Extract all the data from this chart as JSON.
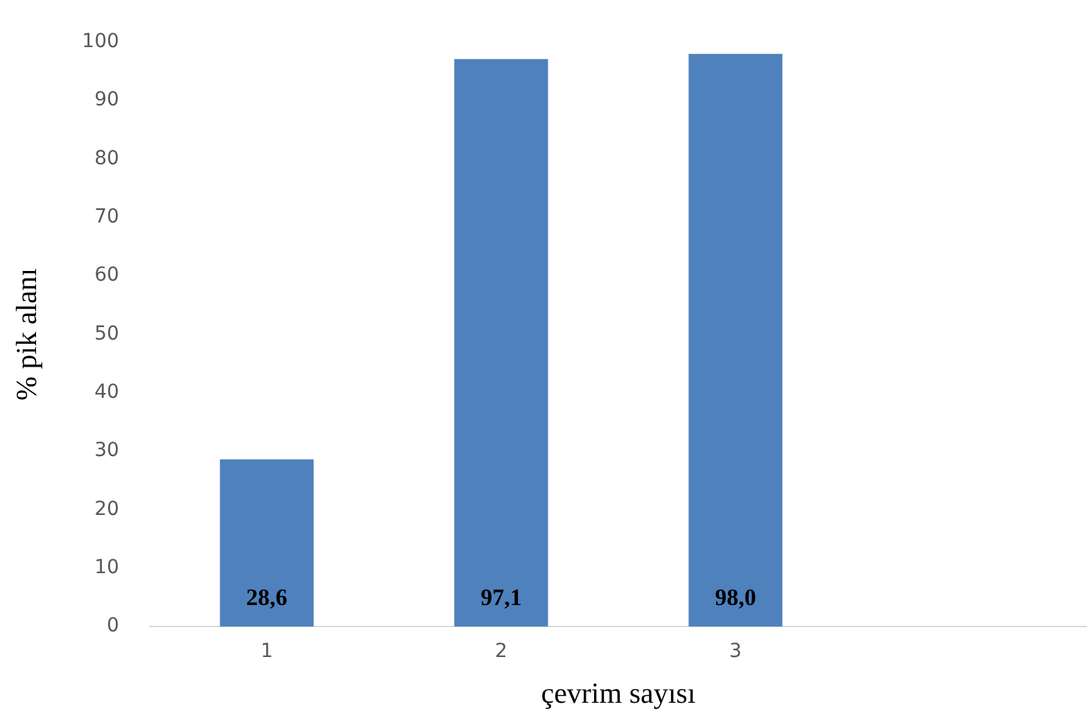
{
  "chart_data": {
    "type": "bar",
    "xlabel": "çevrim sayısı",
    "ylabel": "% pik alanı",
    "categories": [
      "1",
      "2",
      "3",
      null
    ],
    "values": [
      28.6,
      97.1,
      98.0,
      null
    ],
    "value_labels": [
      "28,6",
      "97,1",
      "98,0",
      null
    ],
    "color": "#4f81bd",
    "ylim": [
      0,
      100
    ],
    "yticks": [
      0,
      10,
      20,
      30,
      40,
      50,
      60,
      70,
      80,
      90,
      100
    ],
    "grid": false,
    "legend": false
  }
}
